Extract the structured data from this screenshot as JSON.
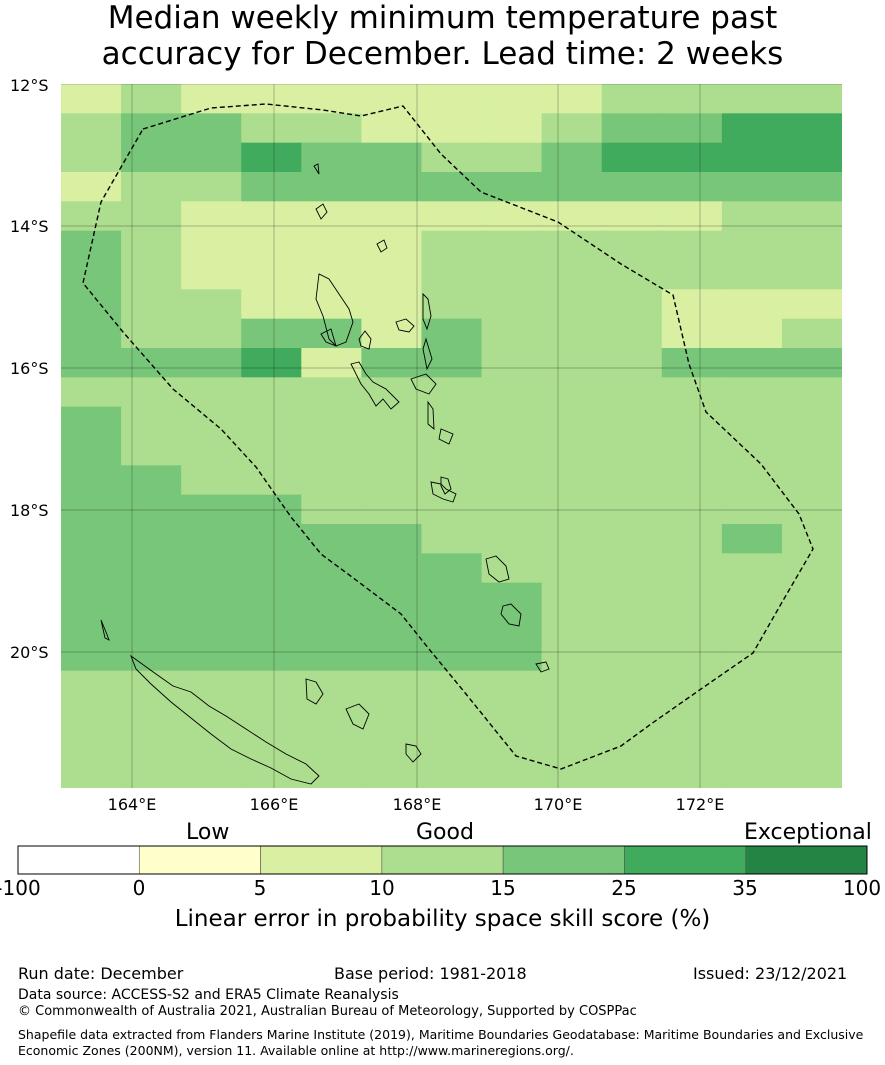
{
  "title_line1": "Median weekly minimum temperature past",
  "title_line2": "accuracy for December. Lead time: 2 weeks",
  "lat_labels": [
    "12°S",
    "14°S",
    "16°S",
    "18°S",
    "20°S"
  ],
  "lon_labels": [
    "164°E",
    "166°E",
    "168°E",
    "170°E",
    "172°E"
  ],
  "colorbar": {
    "categories": [
      "Low",
      "Good",
      "Exceptional"
    ],
    "ticks": [
      "-100",
      "0",
      "5",
      "10",
      "15",
      "25",
      "35",
      "100"
    ],
    "colors": [
      "#ffffff",
      "#ffffcc",
      "#d9f0a3",
      "#addd8e",
      "#78c679",
      "#41ab5d",
      "#238443"
    ],
    "label": "Linear error in probability space skill score (%)"
  },
  "footer": {
    "run_date": "Run date: December",
    "base_period": "Base period: 1981-2018",
    "issued": "Issued: 23/12/2021",
    "data_source": "Data source: ACCESS-S2 and ERA5 Climate Reanalysis",
    "copyright": "© Commonwealth of Australia 2021, Australian Bureau of Meteorology, Supported by COSPPac",
    "shapefile": "Shapefile data extracted from Flanders Marine Institute (2019), Maritime Boundaries Geodatabase: Maritime Boundaries and Exclusive Economic Zones (200NM), version 11. Available online at http://www.marineregions.org/."
  },
  "grid": {
    "cols": 13,
    "rows": [
      "2322222223333",
      "3443322234455",
      "3445443345555",
      "2334444444444",
      "3322222222233",
      "4322223333333",
      "4322223333333",
      "4332223333222",
      "4334424333223",
      "4445244333444",
      "3333333333333",
      "4333333333333",
      "4333333333333",
      "4433333333333",
      "4444333333333",
      "4444443333343",
      "4444444333333",
      "4444444433333",
      "4444444433333",
      "4444444433333",
      "3333333333333",
      "3333333333333",
      "3333333333333",
      "3333333333333"
    ]
  }
}
